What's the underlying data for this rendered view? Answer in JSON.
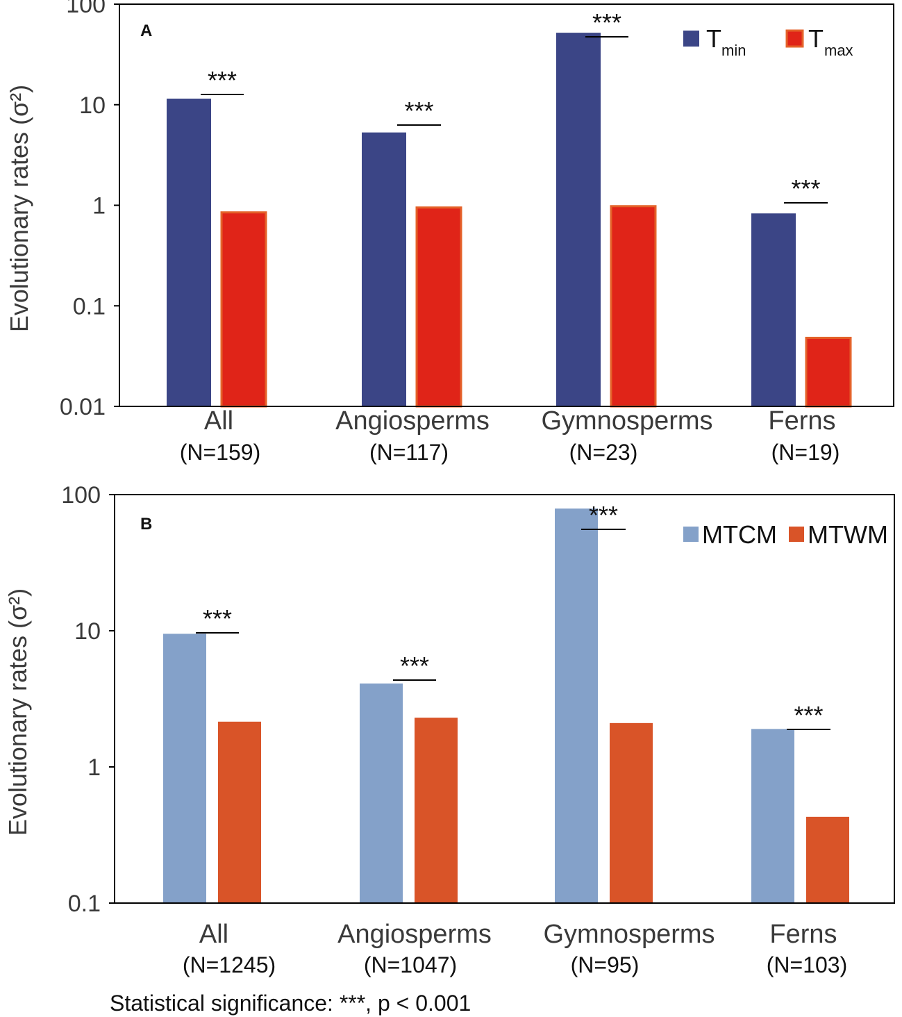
{
  "chart_data": [
    {
      "type": "bar",
      "panel_label": "A",
      "scale": "log",
      "ylabel": "Evolutionary rates (σ²)",
      "ylim": [
        0.01,
        100
      ],
      "yticks": [
        "0.01",
        "0.1",
        "1",
        "10",
        "100"
      ],
      "categories": [
        "All",
        "Angiosperms",
        "Gymnosperms",
        "Ferns"
      ],
      "sample_sizes": [
        "(N=159)",
        "(N=117)",
        "(N=23)",
        "(N=19)"
      ],
      "series": [
        {
          "name": "T",
          "subscript": "min",
          "color": "#3b4586",
          "values": [
            11.5,
            5.3,
            52,
            0.83
          ]
        },
        {
          "name": "T",
          "subscript": "max",
          "color": "#e02418",
          "edge": "#e4622a",
          "values": [
            0.85,
            0.95,
            0.98,
            0.048
          ]
        }
      ],
      "significance": [
        "***",
        "***",
        "***",
        "***"
      ]
    },
    {
      "type": "bar",
      "panel_label": "B",
      "scale": "log",
      "ylabel": "Evolutionary rates (σ²)",
      "ylim": [
        0.1,
        100
      ],
      "yticks": [
        "0.1",
        "1",
        "10",
        "100"
      ],
      "categories": [
        "All",
        "Angiosperms",
        "Gymnosperms",
        "Ferns"
      ],
      "sample_sizes": [
        "(N=1245)",
        "(N=1047)",
        "(N=95)",
        "(N=103)"
      ],
      "series": [
        {
          "name": "MTCM",
          "subscript": "",
          "color": "#84a1c9",
          "values": [
            9.5,
            4.1,
            79,
            1.9
          ]
        },
        {
          "name": "MTWM",
          "subscript": "",
          "color": "#d95428",
          "values": [
            2.15,
            2.3,
            2.1,
            0.43
          ]
        }
      ],
      "significance": [
        "***",
        "***",
        "***",
        "***"
      ]
    }
  ],
  "footnote": "Statistical significance: ***, p < 0.001"
}
